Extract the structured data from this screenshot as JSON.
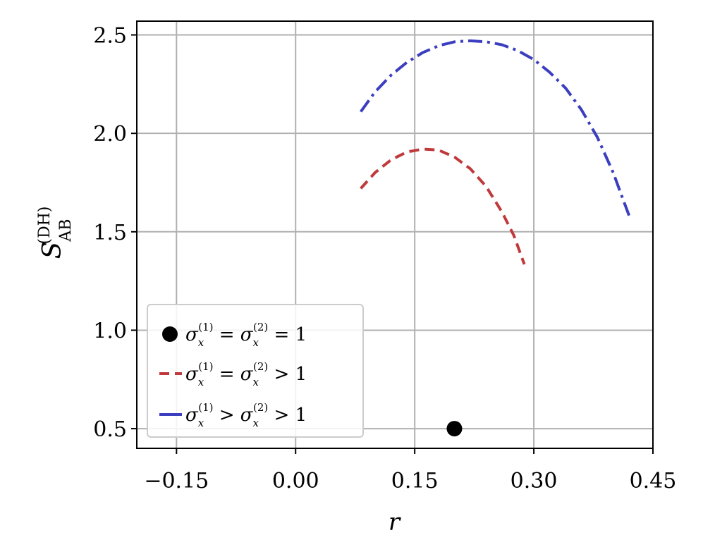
{
  "chart_data": {
    "type": "scatter",
    "xlabel": "r",
    "ylabel": "S",
    "ylabel_superscript": "(DH)",
    "ylabel_subscript": "AB",
    "xlim": [
      -0.2,
      0.45
    ],
    "ylim": [
      0.4,
      2.57
    ],
    "xticks": [
      -0.15,
      0.0,
      0.15,
      0.3,
      0.45
    ],
    "xtick_labels": [
      "−0.15",
      "0.00",
      "0.15",
      "0.30",
      "0.45"
    ],
    "yticks": [
      0.5,
      1.0,
      1.5,
      2.0,
      2.5
    ],
    "ytick_labels": [
      "0.5",
      "1.0",
      "1.5",
      "2.0",
      "2.5"
    ],
    "grid": true,
    "legend_position": "lower-left",
    "series": [
      {
        "name": "σx(1) = σx(2) = 1",
        "legend_label": {
          "base": "σ",
          "sub": "x",
          "sup1": "(1)",
          "sup2": "(2)",
          "text": [
            "σ",
            "x",
            "(1)",
            " = ",
            "σ",
            "x",
            "(2)",
            " = 1"
          ]
        },
        "style": "marker",
        "color": "#000000",
        "x": [
          0.2
        ],
        "y": [
          0.5
        ]
      },
      {
        "name": "σx(1) = σx(2) > 1",
        "style": "dashed",
        "color": "#c0393b",
        "x": [
          0.082,
          0.1,
          0.12,
          0.14,
          0.16,
          0.18,
          0.2,
          0.22,
          0.24,
          0.26,
          0.275,
          0.288
        ],
        "y": [
          1.72,
          1.8,
          1.865,
          1.905,
          1.92,
          1.915,
          1.88,
          1.82,
          1.73,
          1.6,
          1.48,
          1.335
        ]
      },
      {
        "name": "σx(1) > σx(2) > 1",
        "style": "dashdot",
        "color": "#3b3fbf",
        "x": [
          0.082,
          0.1,
          0.12,
          0.14,
          0.16,
          0.18,
          0.2,
          0.22,
          0.24,
          0.26,
          0.28,
          0.3,
          0.32,
          0.34,
          0.36,
          0.38,
          0.4,
          0.41,
          0.422
        ],
        "y": [
          2.11,
          2.21,
          2.295,
          2.36,
          2.41,
          2.445,
          2.465,
          2.47,
          2.465,
          2.45,
          2.42,
          2.375,
          2.31,
          2.23,
          2.12,
          1.98,
          1.8,
          1.69,
          1.56
        ]
      }
    ]
  },
  "legend": {
    "items": [
      {
        "pre": "σ",
        "sub": "x",
        "sup": "(1)",
        "mid": " = σ",
        "sub2": "x",
        "sup2": "(2)",
        "post": " = 1"
      },
      {
        "pre": "σ",
        "sub": "x",
        "sup": "(1)",
        "mid": " = σ",
        "sub2": "x",
        "sup2": "(2)",
        "post": " > 1"
      },
      {
        "pre": "σ",
        "sub": "x",
        "sup": "(1)",
        "mid": " > σ",
        "sub2": "x",
        "sup2": "(2)",
        "post": " > 1"
      }
    ]
  }
}
